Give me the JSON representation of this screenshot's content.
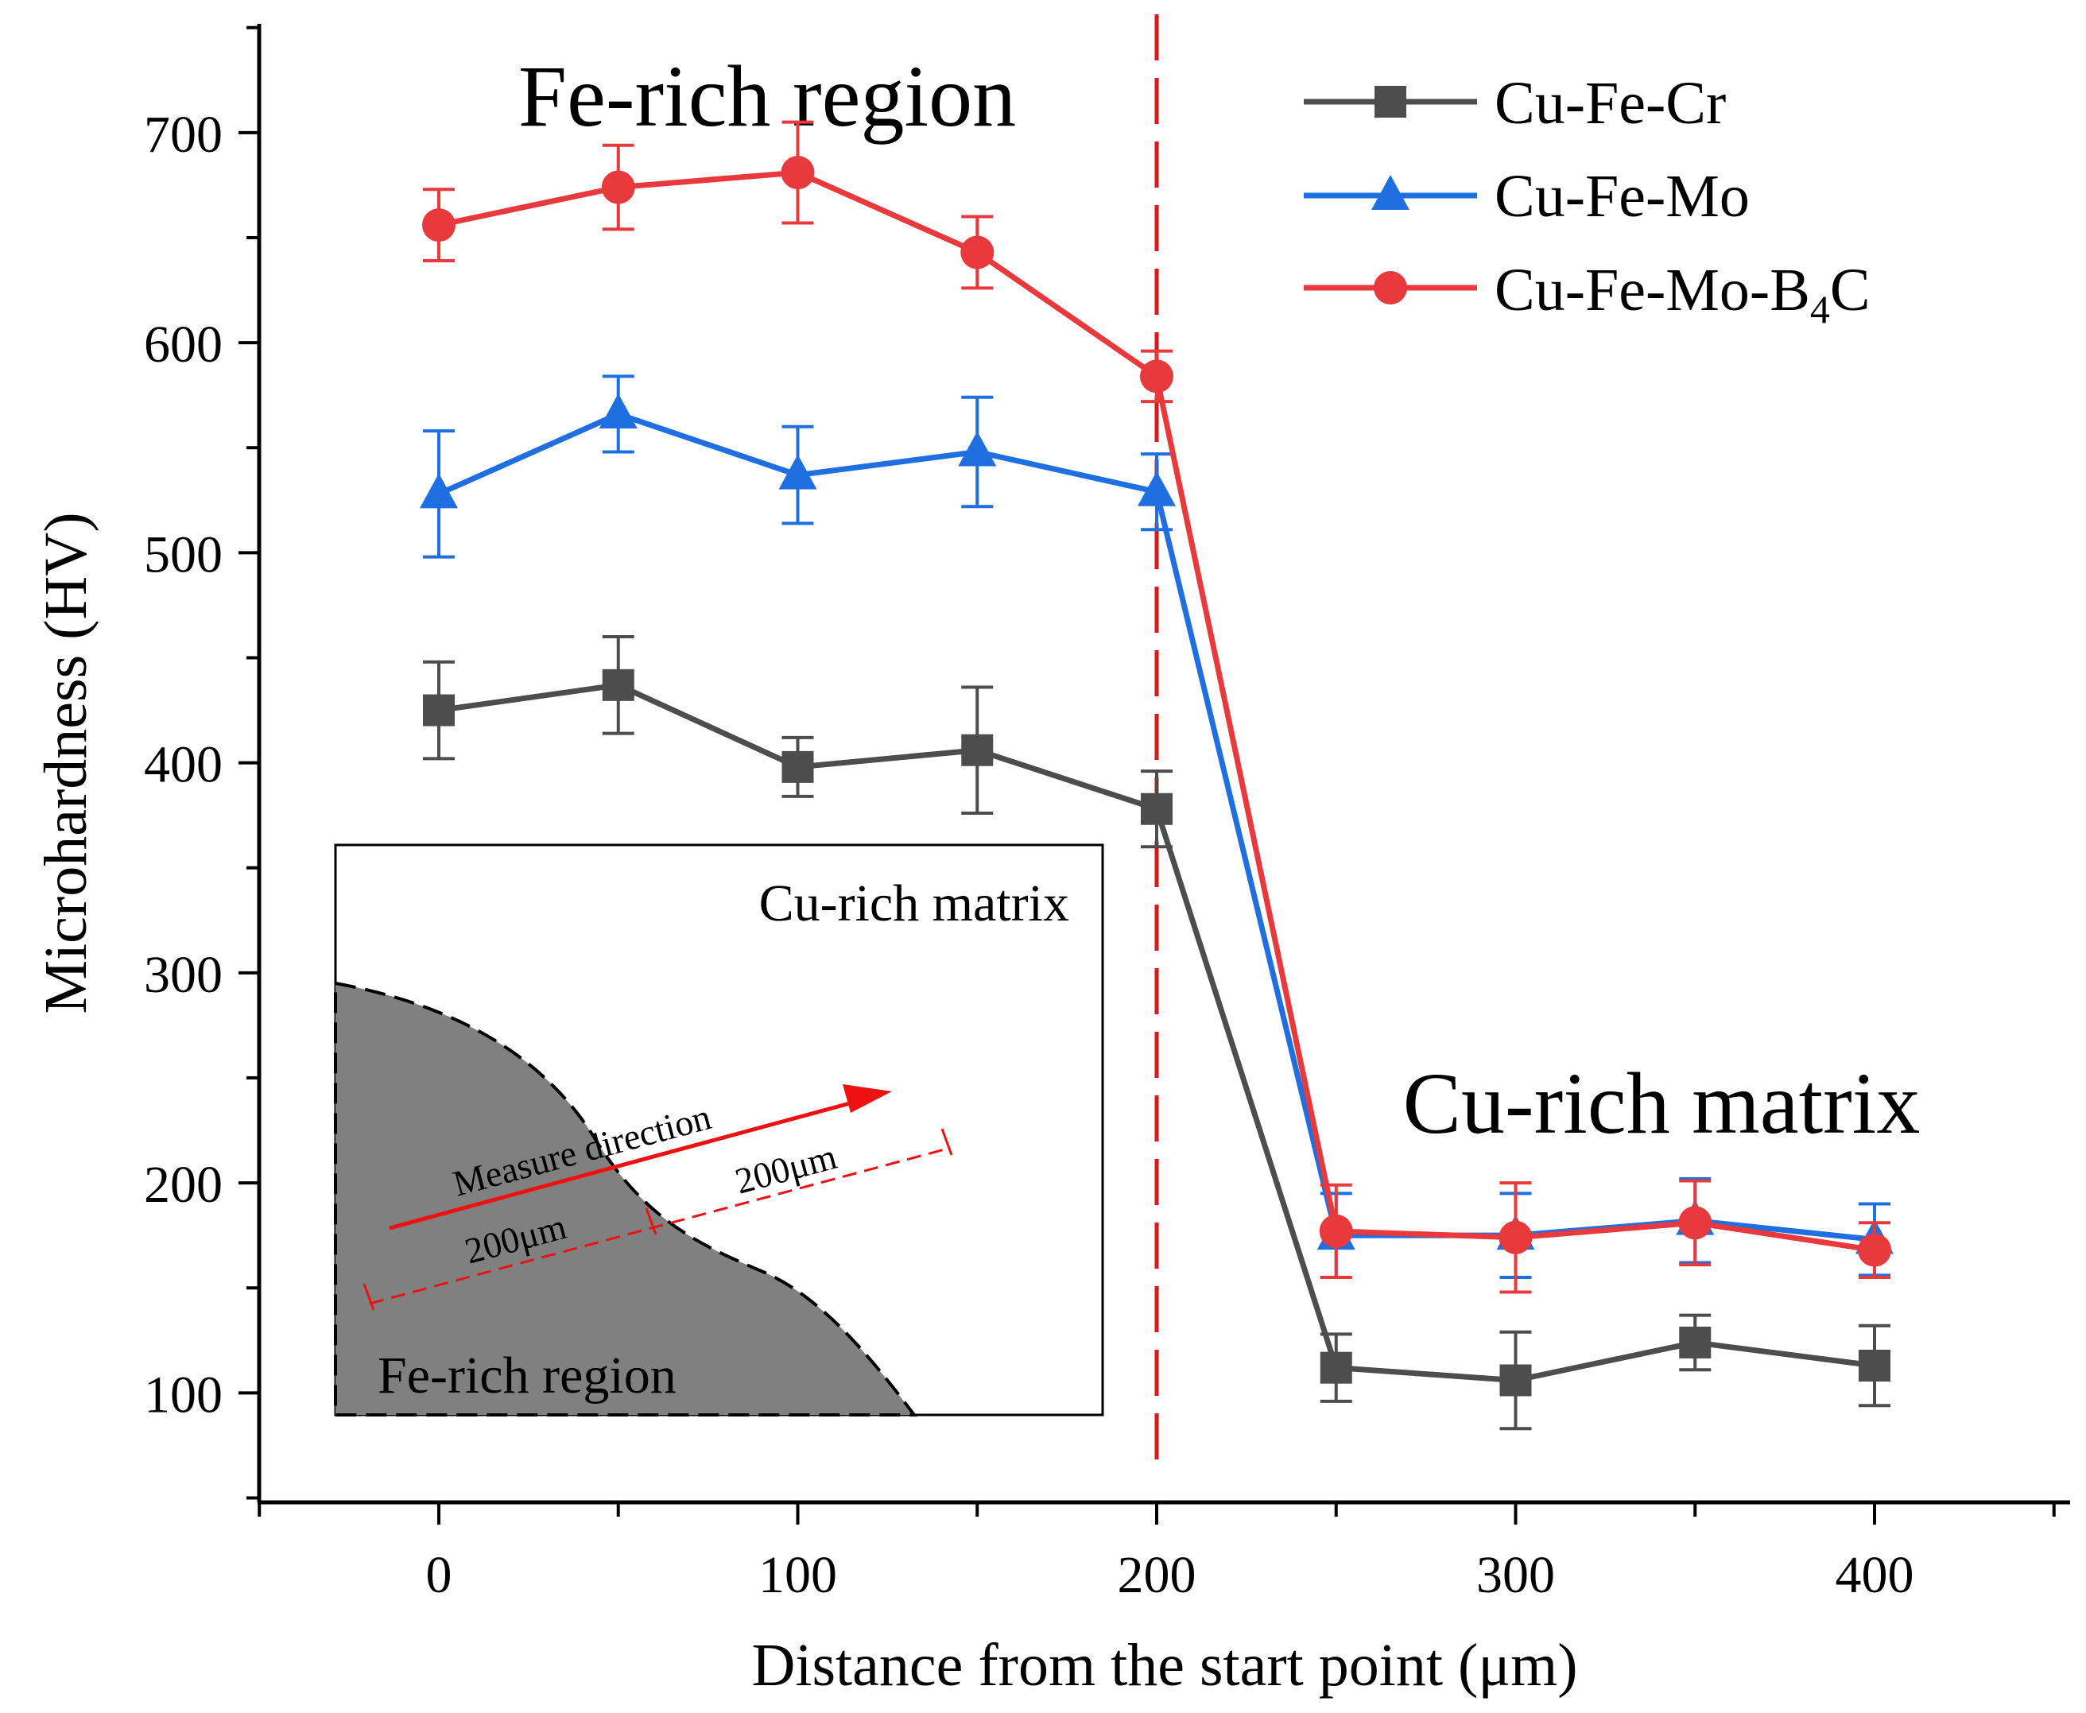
{
  "chart_data": {
    "type": "line",
    "xlabel": "Distance from the start point (μm)",
    "ylabel": "Microhardness (HV)",
    "xlim": [
      -50,
      450
    ],
    "ylim": [
      50,
      750
    ],
    "xticks": [
      0,
      100,
      200,
      300,
      400
    ],
    "yticks": [
      100,
      200,
      300,
      400,
      500,
      600,
      700
    ],
    "x": [
      0,
      50,
      100,
      150,
      200,
      250,
      300,
      350,
      400
    ],
    "series": [
      {
        "name": "Cu-Fe-Cr",
        "color": "#4d4d4d",
        "marker": "square",
        "values": [
          425,
          437,
          398,
          406,
          378,
          112,
          106,
          124,
          113
        ],
        "errors": [
          23,
          23,
          14,
          30,
          18,
          16,
          23,
          13,
          19
        ]
      },
      {
        "name": "Cu-Fe-Mo",
        "color": "#1f6fe0",
        "marker": "triangle",
        "values": [
          528,
          566,
          537,
          548,
          529,
          175,
          175,
          182,
          173
        ],
        "errors": [
          30,
          18,
          23,
          26,
          18,
          20,
          20,
          20,
          17
        ]
      },
      {
        "name": "Cu-Fe-Mo-B",
        "name_subscript": "4",
        "name_suffix": "C",
        "color": "#e8393d",
        "marker": "circle",
        "values": [
          656,
          674,
          681,
          643,
          584,
          177,
          174,
          181,
          168
        ],
        "errors": [
          17,
          20,
          24,
          17,
          12,
          22,
          26,
          20,
          13
        ]
      }
    ],
    "divider": {
      "x": 200,
      "color": "#e0161b"
    },
    "annotations": {
      "left_region": "Fe-rich region",
      "right_region": "Cu-rich matrix"
    },
    "inset": {
      "matrix_label": "Cu-rich matrix",
      "region_label": "Fe-rich region",
      "arrow_label": "Measure direction",
      "segment_label_1": "200μm",
      "segment_label_2": "200μm"
    },
    "legend_position": "top-right"
  }
}
